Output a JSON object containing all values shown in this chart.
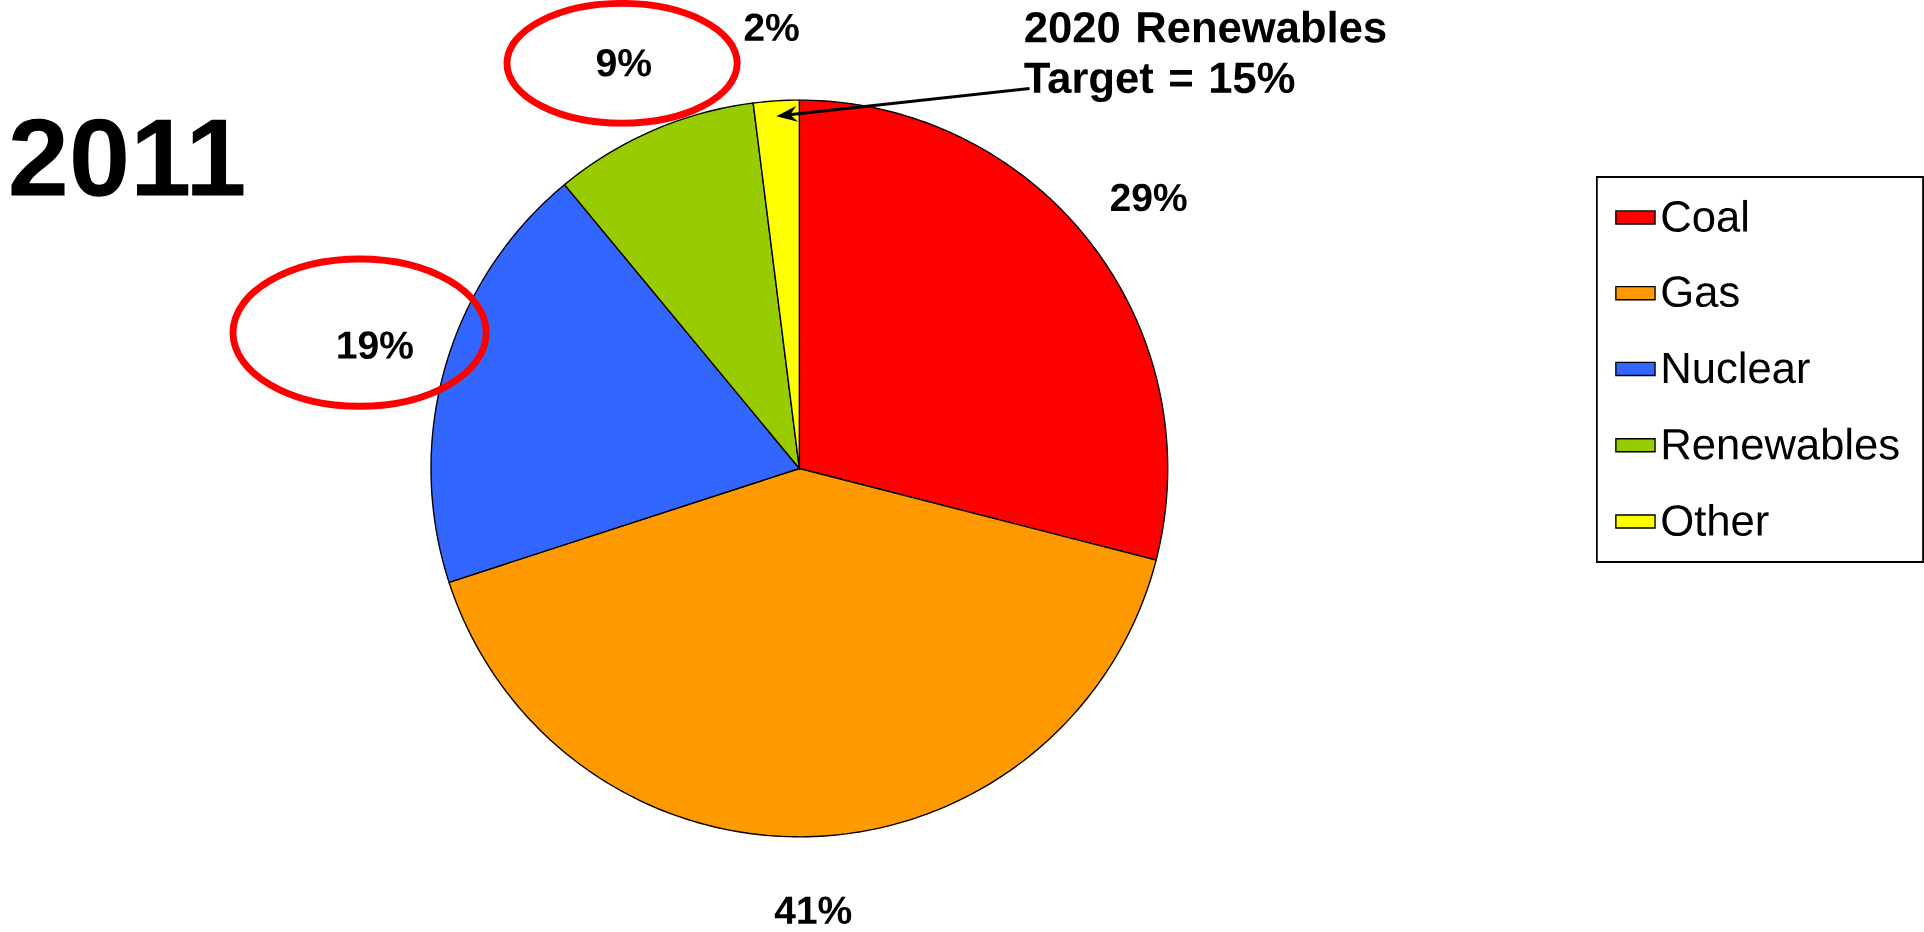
{
  "chart_data": {
    "type": "pie",
    "title": "2011",
    "categories": [
      "Coal",
      "Gas",
      "Nuclear",
      "Renewables",
      "Other"
    ],
    "values": [
      29,
      41,
      19,
      9,
      2
    ],
    "colors": [
      "#ff0000",
      "#ff9900",
      "#3366ff",
      "#99cc00",
      "#ffff00"
    ],
    "value_labels": [
      "29%",
      "41%",
      "19%",
      "9%",
      "2%"
    ],
    "legend": "right",
    "annotations": [
      "2020 Renewables Target = 15%"
    ]
  }
}
